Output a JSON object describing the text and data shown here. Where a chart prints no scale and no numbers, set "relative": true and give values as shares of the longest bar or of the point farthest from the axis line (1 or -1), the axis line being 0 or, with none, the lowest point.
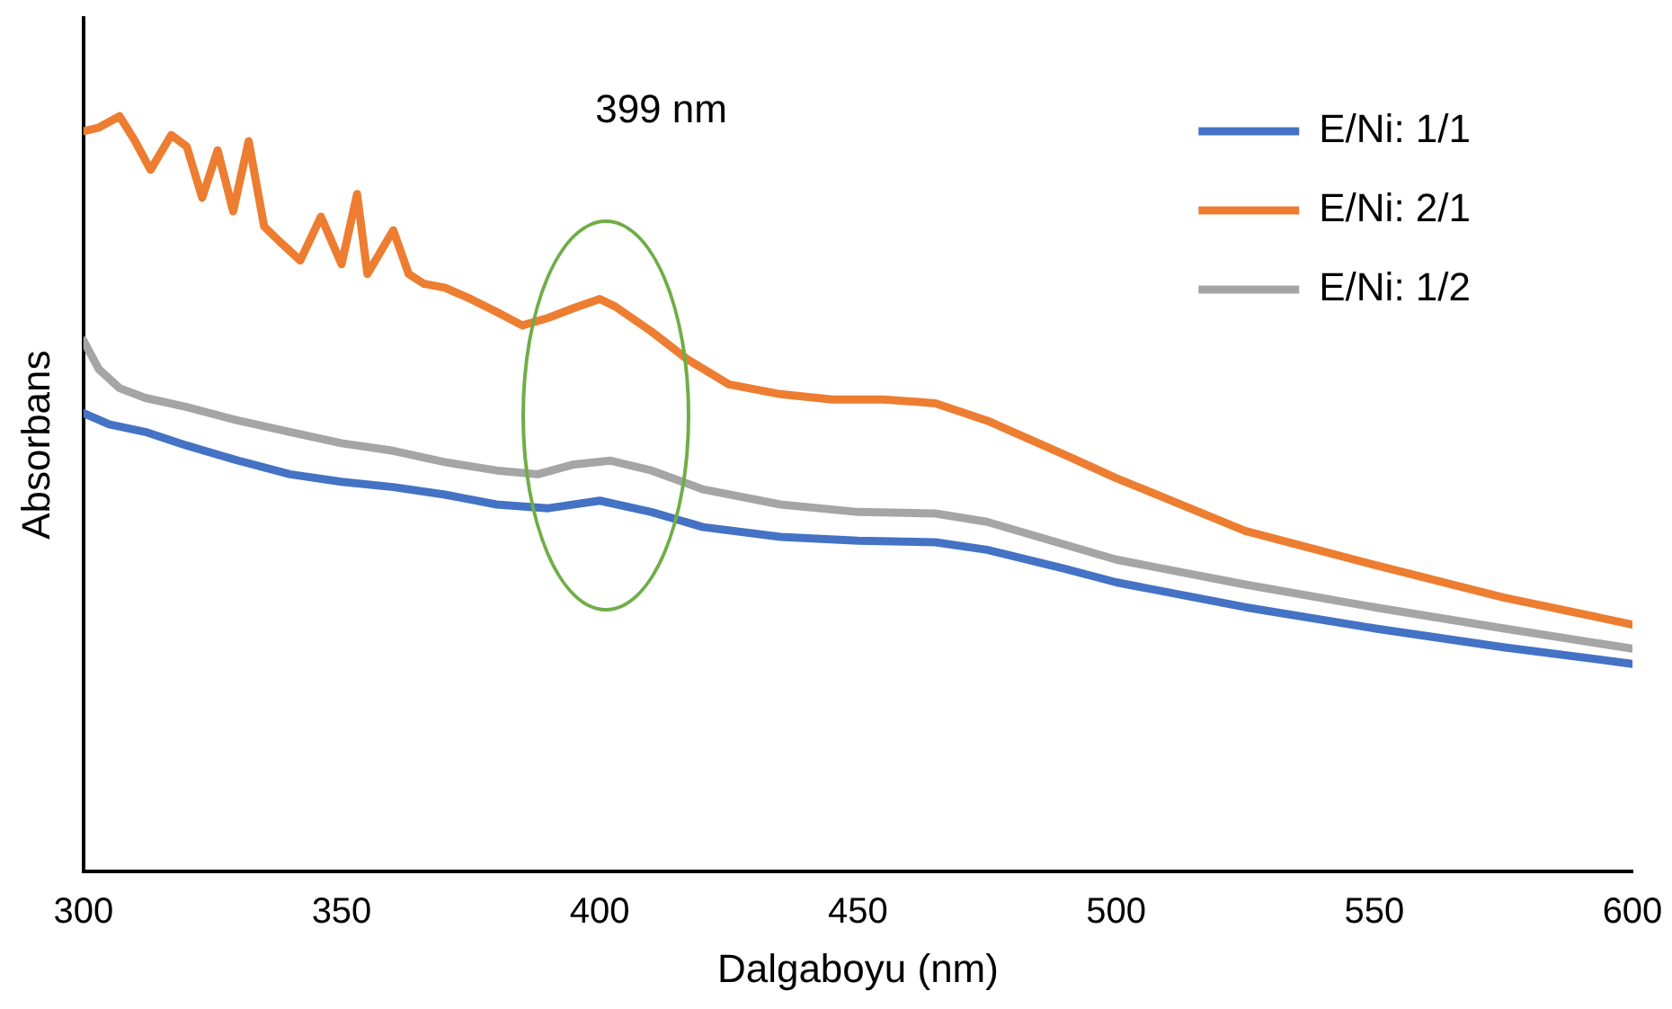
{
  "chart_data": {
    "type": "line",
    "xlabel": "Dalgaboyu (nm)",
    "ylabel": "Absorbans",
    "relative": true,
    "xlim": [
      300,
      600
    ],
    "xticks": [
      300,
      350,
      400,
      450,
      500,
      550,
      600
    ],
    "grid": false,
    "legend": "top right",
    "marker": "none",
    "line_style": "solid",
    "annotations": [
      "399 nm"
    ],
    "series": [
      {
        "name": "E/Ni: 1/1",
        "color": "#4472c4",
        "x": [
          300,
          305,
          312,
          320,
          330,
          340,
          350,
          360,
          370,
          380,
          390,
          400,
          410,
          420,
          435,
          450,
          465,
          475,
          490,
          500,
          525,
          550,
          575,
          600
        ],
        "values": [
          0.607,
          0.592,
          0.582,
          0.564,
          0.544,
          0.526,
          0.516,
          0.509,
          0.499,
          0.486,
          0.481,
          0.491,
          0.476,
          0.456,
          0.443,
          0.438,
          0.436,
          0.426,
          0.401,
          0.383,
          0.35,
          0.322,
          0.297,
          0.275
        ]
      },
      {
        "name": "E/Ni: 2/1",
        "color": "#ed7d31",
        "x": [
          300,
          303,
          307,
          310,
          313,
          317,
          320,
          323,
          326,
          329,
          332,
          335,
          338,
          342,
          346,
          350,
          353,
          355,
          360,
          363,
          366,
          370,
          375,
          380,
          385,
          390,
          395,
          400,
          403,
          410,
          417,
          425,
          435,
          445,
          455,
          465,
          475,
          490,
          500,
          525,
          550,
          575,
          600
        ],
        "values": [
          0.98,
          0.985,
          1.0,
          0.967,
          0.929,
          0.975,
          0.96,
          0.892,
          0.955,
          0.874,
          0.967,
          0.854,
          0.834,
          0.809,
          0.867,
          0.804,
          0.897,
          0.791,
          0.849,
          0.791,
          0.778,
          0.773,
          0.758,
          0.741,
          0.723,
          0.733,
          0.746,
          0.758,
          0.748,
          0.715,
          0.678,
          0.645,
          0.632,
          0.625,
          0.625,
          0.62,
          0.597,
          0.552,
          0.521,
          0.451,
          0.406,
          0.363,
          0.327
        ]
      },
      {
        "name": "E/Ni: 1/2",
        "color": "#a5a5a5",
        "x": [
          300,
          303,
          307,
          312,
          320,
          330,
          340,
          350,
          360,
          370,
          380,
          388,
          395,
          402,
          410,
          420,
          435,
          450,
          465,
          475,
          490,
          500,
          525,
          550,
          575,
          600
        ],
        "values": [
          0.703,
          0.665,
          0.64,
          0.627,
          0.615,
          0.597,
          0.582,
          0.567,
          0.557,
          0.542,
          0.531,
          0.526,
          0.539,
          0.544,
          0.531,
          0.506,
          0.486,
          0.476,
          0.474,
          0.463,
          0.433,
          0.413,
          0.38,
          0.35,
          0.322,
          0.295
        ]
      }
    ]
  }
}
